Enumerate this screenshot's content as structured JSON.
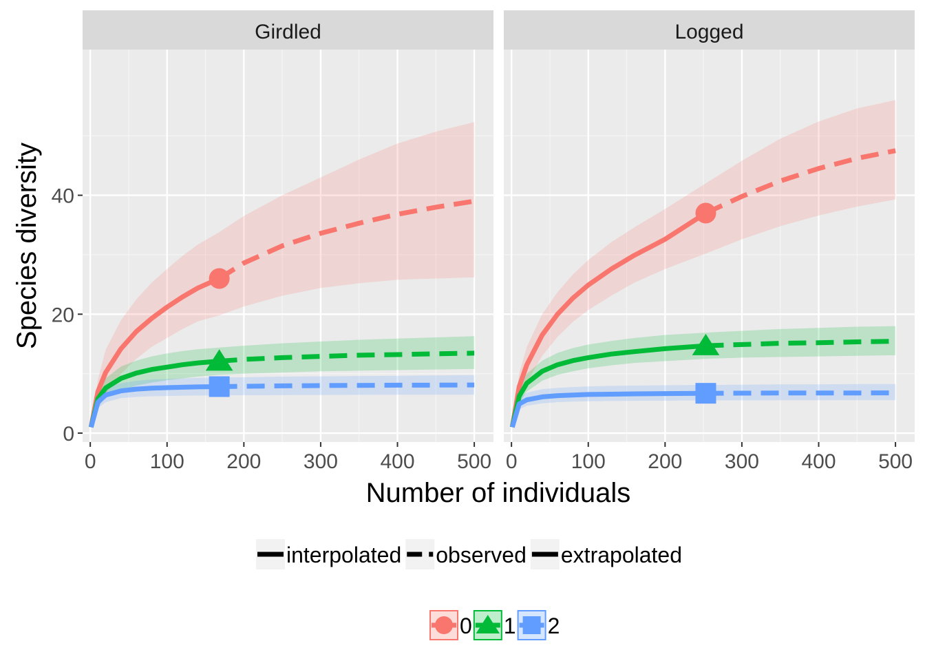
{
  "chart_data": {
    "type": "line",
    "xlabel": "Number of individuals",
    "ylabel": "Species diversity",
    "xlim": [
      -10,
      525
    ],
    "ylim": [
      -1.5,
      64.5
    ],
    "x_ticks": [
      0,
      100,
      200,
      300,
      400,
      500
    ],
    "x_tick_labels": [
      "0",
      "100",
      "200",
      "300",
      "400",
      "500"
    ],
    "y_ticks": [
      0,
      20,
      40
    ],
    "y_tick_labels": [
      "0",
      "20",
      "40"
    ],
    "grid": true,
    "legend_position": "bottom",
    "colors": {
      "0": "#F8766D",
      "1": "#00BA38",
      "2": "#619CFF"
    },
    "panels": [
      {
        "title": "Girdled",
        "observed_x": 168,
        "series": [
          {
            "order": "0",
            "shape": "circle",
            "x": [
              1,
              10,
              20,
              40,
              60,
              80,
              100,
              120,
              140,
              168,
              200,
              250,
              300,
              350,
              400,
              450,
              500
            ],
            "y": [
              1,
              7,
              10.2,
              14.2,
              17.1,
              19.3,
              21.2,
              22.9,
              24.4,
              26,
              28.6,
              31.5,
              33.6,
              35.3,
              36.8,
              38,
              39
            ],
            "lower": [
              1,
              4,
              6.5,
              10,
              12.5,
              14.5,
              16,
              17.5,
              18.8,
              19.8,
              21.3,
              23.1,
              24.4,
              25.2,
              25.8,
              26,
              26.2
            ],
            "upper": [
              1,
              9,
              14,
              19,
              22.5,
              25.3,
              27.6,
              29.8,
              31.7,
              33.8,
              36.5,
              40,
              43,
              46,
              48.7,
              50.7,
              52.3
            ]
          },
          {
            "order": "1",
            "shape": "triangle",
            "x": [
              1,
              10,
              20,
              40,
              60,
              80,
              100,
              120,
              140,
              168,
              200,
              250,
              300,
              350,
              400,
              450,
              500
            ],
            "y": [
              1,
              5.8,
              7.6,
              9.2,
              10.1,
              10.7,
              11.1,
              11.5,
              11.8,
              12.1,
              12.4,
              12.7,
              12.9,
              13.1,
              13.2,
              13.35,
              13.45
            ],
            "lower": [
              1,
              4.5,
              6,
              7.2,
              8,
              8.5,
              8.9,
              9.2,
              9.5,
              9.8,
              10,
              10.2,
              10.4,
              10.5,
              10.6,
              10.7,
              10.8
            ],
            "upper": [
              1,
              7,
              9.2,
              11.2,
              12.2,
              12.9,
              13.4,
              13.8,
              14.1,
              14.4,
              14.7,
              15.1,
              15.4,
              15.7,
              15.9,
              16.1,
              16.3
            ]
          },
          {
            "order": "2",
            "shape": "square",
            "x": [
              1,
              10,
              20,
              40,
              60,
              80,
              100,
              120,
              140,
              168,
              200,
              250,
              300,
              350,
              400,
              450,
              500
            ],
            "y": [
              1,
              5.2,
              6.4,
              7.1,
              7.4,
              7.55,
              7.65,
              7.72,
              7.78,
              7.82,
              7.88,
              7.95,
              8.0,
              8.03,
              8.06,
              8.08,
              8.1
            ],
            "lower": [
              1,
              4.2,
              5.2,
              5.9,
              6.1,
              6.2,
              6.25,
              6.3,
              6.33,
              6.35,
              6.38,
              6.4,
              6.42,
              6.44,
              6.45,
              6.46,
              6.47
            ],
            "upper": [
              1,
              6.2,
              7.6,
              8.4,
              8.8,
              9.0,
              9.1,
              9.2,
              9.3,
              9.35,
              9.4,
              9.5,
              9.55,
              9.6,
              9.65,
              9.7,
              9.75
            ]
          }
        ]
      },
      {
        "title": "Logged",
        "observed_x": 253,
        "series": [
          {
            "order": "0",
            "shape": "circle",
            "x": [
              1,
              10,
              20,
              40,
              60,
              80,
              100,
              130,
              160,
              200,
              253,
              300,
              350,
              400,
              450,
              500
            ],
            "y": [
              1,
              7.8,
              11.5,
              16.5,
              20,
              22.7,
              24.9,
              27.6,
              29.9,
              32.6,
              37,
              39.8,
              42.4,
              44.5,
              46.2,
              47.5
            ],
            "lower": [
              1,
              5,
              8.5,
              13,
              16.2,
              18.7,
              20.7,
              23.1,
              25.3,
              27.6,
              30.2,
              32.6,
              34.8,
              36.6,
              38.1,
              39.3
            ],
            "upper": [
              1,
              10,
              14.5,
              20,
              23.7,
              26.7,
              29.1,
              32.1,
              34.6,
              37.7,
              42,
              45.8,
              49.5,
              52.4,
              54.6,
              56
            ]
          },
          {
            "order": "1",
            "shape": "triangle",
            "x": [
              1,
              10,
              20,
              40,
              60,
              80,
              100,
              130,
              160,
              200,
              253,
              300,
              350,
              400,
              450,
              500
            ],
            "y": [
              1,
              6.2,
              8.4,
              10.4,
              11.5,
              12.2,
              12.7,
              13.3,
              13.7,
              14.2,
              14.7,
              14.9,
              15.1,
              15.2,
              15.35,
              15.45
            ],
            "lower": [
              1,
              5,
              7,
              8.8,
              9.8,
              10.4,
              10.9,
              11.4,
              11.8,
              12.1,
              12.5,
              12.7,
              12.8,
              12.9,
              13.0,
              13.1
            ],
            "upper": [
              1,
              7.6,
              10,
              12.2,
              13.5,
              14.3,
              14.9,
              15.5,
              16,
              16.5,
              16.9,
              17.2,
              17.5,
              17.7,
              17.9,
              18.0
            ]
          },
          {
            "order": "2",
            "shape": "square",
            "x": [
              1,
              10,
              20,
              40,
              60,
              80,
              100,
              130,
              160,
              200,
              253,
              300,
              350,
              400,
              450,
              500
            ],
            "y": [
              1,
              4.9,
              5.6,
              6.1,
              6.3,
              6.4,
              6.5,
              6.55,
              6.6,
              6.65,
              6.7,
              6.72,
              6.74,
              6.75,
              6.76,
              6.77
            ],
            "lower": [
              1,
              4.0,
              4.6,
              5.0,
              5.2,
              5.3,
              5.35,
              5.4,
              5.43,
              5.46,
              5.5,
              5.52,
              5.53,
              5.54,
              5.55,
              5.55
            ],
            "upper": [
              1,
              5.9,
              6.8,
              7.4,
              7.6,
              7.75,
              7.85,
              7.95,
              8.0,
              8.05,
              8.1,
              8.15,
              8.2,
              8.2,
              8.25,
              8.25
            ]
          }
        ]
      }
    ],
    "legend_method": {
      "items": [
        {
          "label": "interpolated",
          "linetype": "solid"
        },
        {
          "label": "observed",
          "linetype": "dashed"
        },
        {
          "label": "extrapolated",
          "linetype": "solid"
        }
      ]
    },
    "legend_order": {
      "items": [
        {
          "label": "0",
          "shape": "circle"
        },
        {
          "label": "1",
          "shape": "triangle"
        },
        {
          "label": "2",
          "shape": "square"
        }
      ]
    }
  }
}
